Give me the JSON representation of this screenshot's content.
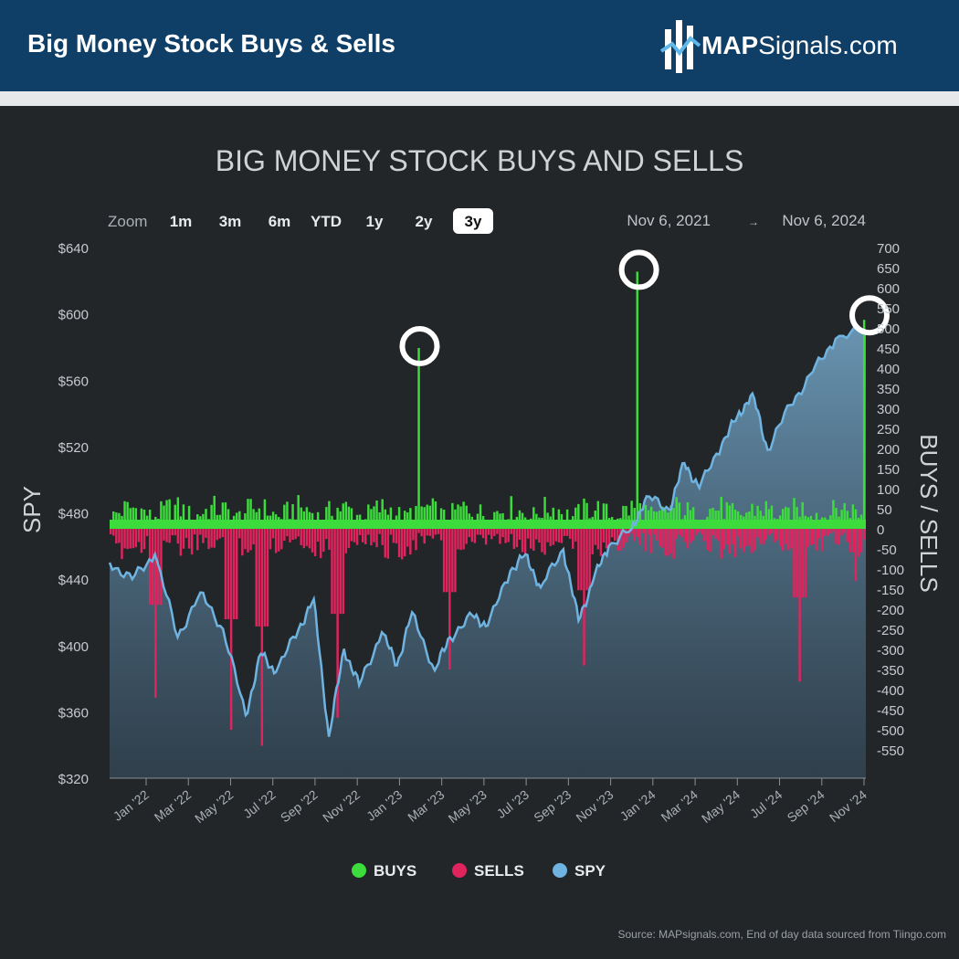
{
  "header": {
    "title": "Big Money Stock Buys & Sells",
    "brand_bold": "MAP",
    "brand_rest": "Signals.com"
  },
  "zoom": {
    "label": "Zoom",
    "options": [
      "1m",
      "3m",
      "6m",
      "YTD",
      "1y",
      "2y",
      "3y"
    ],
    "selected": "3y"
  },
  "range": {
    "from": "Nov 6, 2021",
    "arrow": "→",
    "to": "Nov 6, 2024"
  },
  "source": "Source: MAPsignals.com, End of day data sourced from Tiingo.com",
  "colors": {
    "buys": "#3ddc3d",
    "sells": "#e0245e",
    "spy": "#6fb3e0",
    "background": "#232629"
  },
  "chart_data": {
    "type": "bar",
    "title": "BIG MONEY STOCK BUYS AND SELLS",
    "y_left_label": "SPY",
    "y_right_label": "BUYS / SELLS",
    "y_left_ticks": [
      "$640",
      "$600",
      "$560",
      "$520",
      "$480",
      "$440",
      "$400",
      "$360",
      "$320"
    ],
    "y_left_range": [
      320,
      640
    ],
    "y_right_ticks": [
      "700",
      "650",
      "600",
      "550",
      "500",
      "450",
      "400",
      "350",
      "300",
      "250",
      "200",
      "150",
      "100",
      "50",
      "0",
      "-50",
      "-100",
      "-150",
      "-200",
      "-250",
      "-300",
      "-350",
      "-400",
      "-450",
      "-500",
      "-550"
    ],
    "y_right_range": [
      -600,
      700
    ],
    "x_ticks": [
      "Jan '22",
      "Mar '22",
      "May '22",
      "Jul '22",
      "Sep '22",
      "Nov '22",
      "Jan '23",
      "Mar '23",
      "May '23",
      "Jul '23",
      "Sep '23",
      "Nov '23",
      "Jan '24",
      "Mar '24",
      "May '24",
      "Jul '24",
      "Sep '24",
      "Nov '24"
    ],
    "legend": [
      {
        "name": "BUYS",
        "color": "#3ddc3d"
      },
      {
        "name": "SELLS",
        "color": "#e0245e"
      },
      {
        "name": "SPY",
        "color": "#6fb3e0"
      }
    ],
    "legend_position": "bottom",
    "spy": {
      "t": [
        0,
        0.03,
        0.06,
        0.09,
        0.12,
        0.15,
        0.18,
        0.2,
        0.22,
        0.25,
        0.27,
        0.29,
        0.31,
        0.33,
        0.36,
        0.38,
        0.4,
        0.43,
        0.45,
        0.48,
        0.5,
        0.53,
        0.55,
        0.57,
        0.6,
        0.62,
        0.64,
        0.66,
        0.69,
        0.71,
        0.74,
        0.76,
        0.78,
        0.81,
        0.83,
        0.85,
        0.87,
        0.9,
        0.93,
        0.96,
        1.0
      ],
      "values": [
        450,
        440,
        455,
        405,
        432,
        410,
        358,
        395,
        384,
        410,
        428,
        345,
        398,
        376,
        408,
        388,
        420,
        385,
        405,
        418,
        412,
        445,
        455,
        435,
        458,
        415,
        440,
        460,
        470,
        490,
        482,
        510,
        495,
        522,
        538,
        552,
        518,
        545,
        565,
        585,
        590
      ]
    },
    "buys": {
      "series_name": "BUYS",
      "spikes": [
        {
          "t": 0.41,
          "value": 450
        },
        {
          "t": 0.7,
          "value": 640
        },
        {
          "t": 1.0,
          "value": 520
        }
      ],
      "typical_max": 110
    },
    "sells": {
      "series_name": "SELLS",
      "typical_min": -120,
      "deep_spikes": [
        {
          "t": 0.06,
          "value": -420
        },
        {
          "t": 0.16,
          "value": -500
        },
        {
          "t": 0.2,
          "value": -540
        },
        {
          "t": 0.3,
          "value": -470
        },
        {
          "t": 0.45,
          "value": -350
        },
        {
          "t": 0.63,
          "value": -340
        },
        {
          "t": 0.915,
          "value": -380
        },
        {
          "t": 0.99,
          "value": -130
        }
      ]
    },
    "highlights": [
      {
        "t": 0.41,
        "value": 450
      },
      {
        "t": 0.7,
        "value": 640
      },
      {
        "t": 1.0,
        "value": 520
      }
    ]
  }
}
